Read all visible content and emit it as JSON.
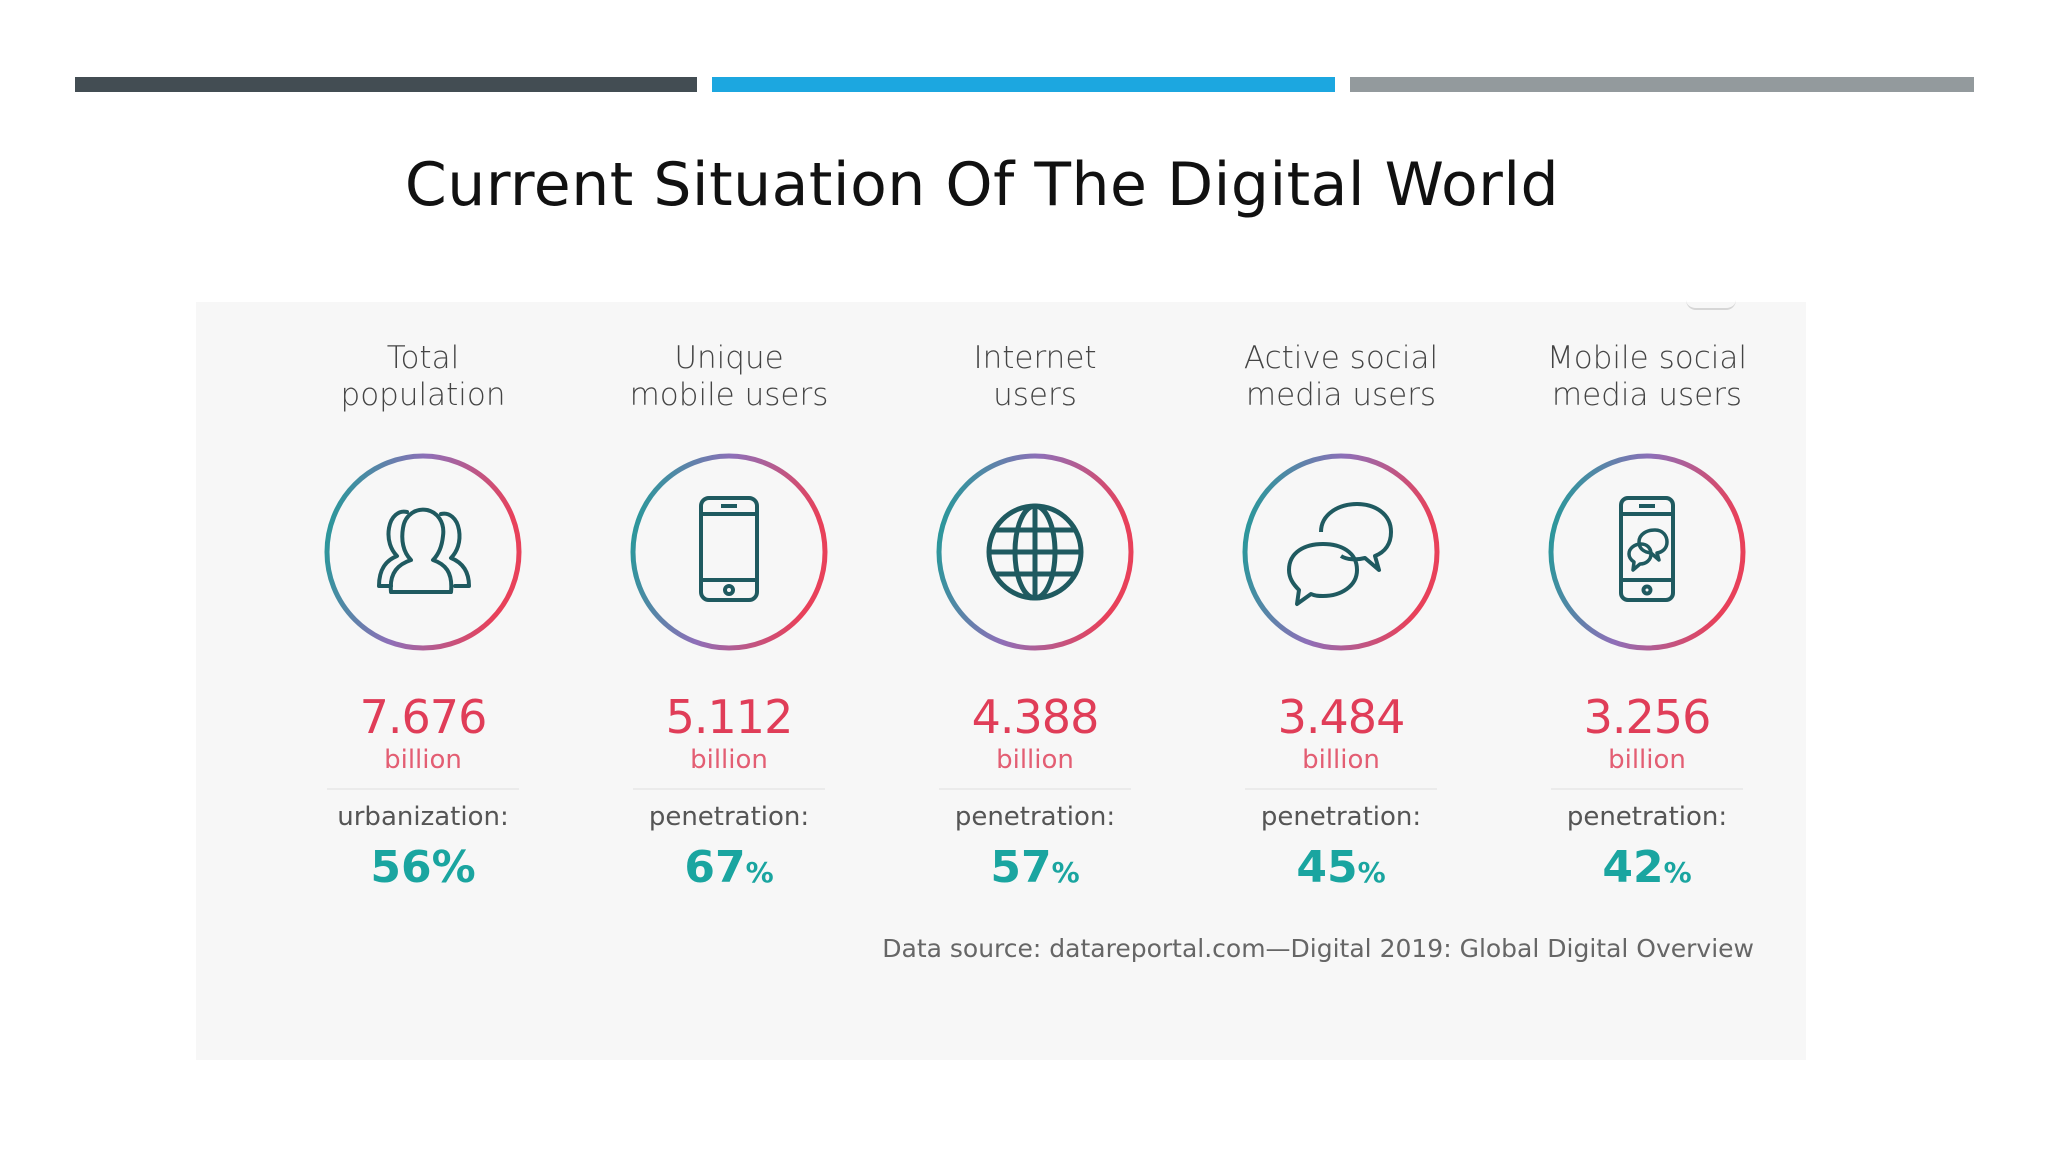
{
  "title": "Current Situation Of The Digital World",
  "colors": {
    "bar_dark": "#434d53",
    "bar_blue": "#1ca7e0",
    "bar_gray": "#939a9d",
    "value_red": "#e03d58",
    "percent_teal": "#1aa5a0",
    "ring_teal": "#1a9e96",
    "ring_purple": "#8e6fb8",
    "ring_red": "#e8415a"
  },
  "stats": [
    {
      "label": "Total\npopulation",
      "icon": "people-icon",
      "value": "7.676",
      "unit": "billion",
      "metric": "urbanization:",
      "percent": "56",
      "percent_sign": "%"
    },
    {
      "label": "Unique\nmobile users",
      "icon": "mobile-phone-icon",
      "value": "5.112",
      "unit": "billion",
      "metric": "penetration:",
      "percent": "67",
      "percent_sign": "%"
    },
    {
      "label": "Internet\nusers",
      "icon": "globe-icon",
      "value": "4.388",
      "unit": "billion",
      "metric": "penetration:",
      "percent": "57",
      "percent_sign": "%"
    },
    {
      "label": "Active social\nmedia users",
      "icon": "chat-bubbles-icon",
      "value": "3.484",
      "unit": "billion",
      "metric": "penetration:",
      "percent": "45",
      "percent_sign": "%"
    },
    {
      "label": "Mobile social\nmedia users",
      "icon": "mobile-chat-icon",
      "value": "3.256",
      "unit": "billion",
      "metric": "penetration:",
      "percent": "42",
      "percent_sign": "%"
    }
  ],
  "source": "Data source: datareportal.com—Digital 2019: Global Digital Overview"
}
